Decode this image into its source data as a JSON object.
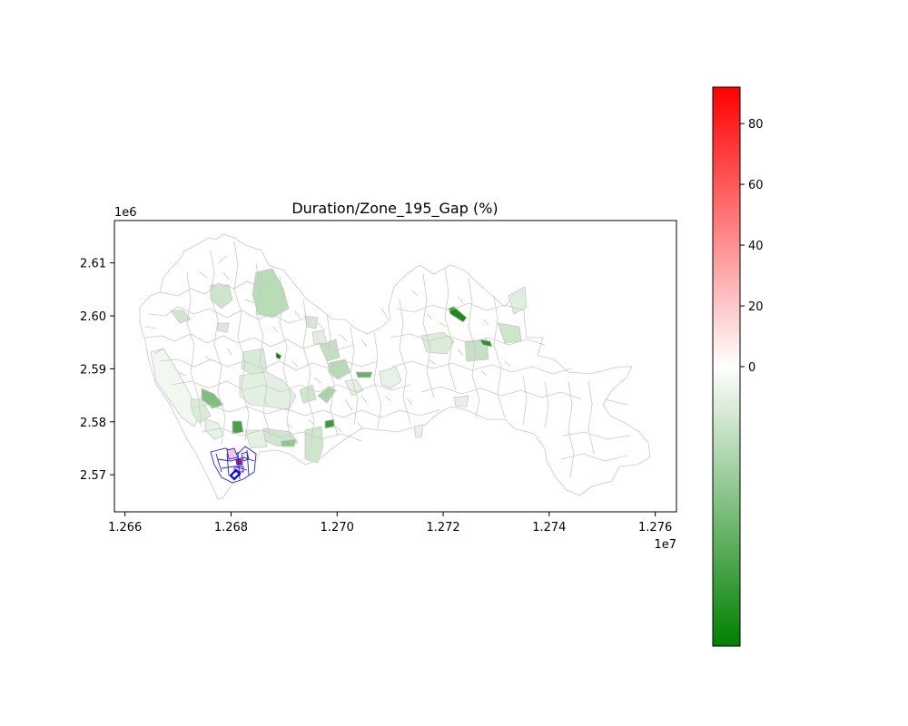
{
  "chart_data": {
    "type": "choropleth-map",
    "title": "Duration/Zone_195_Gap (%)",
    "x_axis": {
      "range": [
        12658000,
        12764000
      ],
      "ticks": [
        12660000,
        12680000,
        12700000,
        12720000,
        12740000,
        12760000
      ],
      "tick_labels": [
        "1.266",
        "1.268",
        "1.270",
        "1.272",
        "1.274",
        "1.276"
      ],
      "offset_label": "1e7"
    },
    "y_axis": {
      "range": [
        2563000,
        2618000
      ],
      "ticks": [
        2570000,
        2580000,
        2590000,
        2600000,
        2610000
      ],
      "tick_labels": [
        "2.57",
        "2.58",
        "2.59",
        "2.60",
        "2.61"
      ],
      "offset_label": "1e6"
    },
    "colorbar": {
      "range": [
        -92,
        92
      ],
      "ticks": [
        0,
        20,
        40,
        60,
        80
      ],
      "tick_labels": [
        "0",
        "20",
        "40",
        "60",
        "80"
      ],
      "colors": {
        "low": "#008000",
        "mid": "#ffffff",
        "high": "#ff0000"
      }
    },
    "edge_colors": {
      "default": "#c8c8c8",
      "highlight": "#0000ff"
    }
  }
}
